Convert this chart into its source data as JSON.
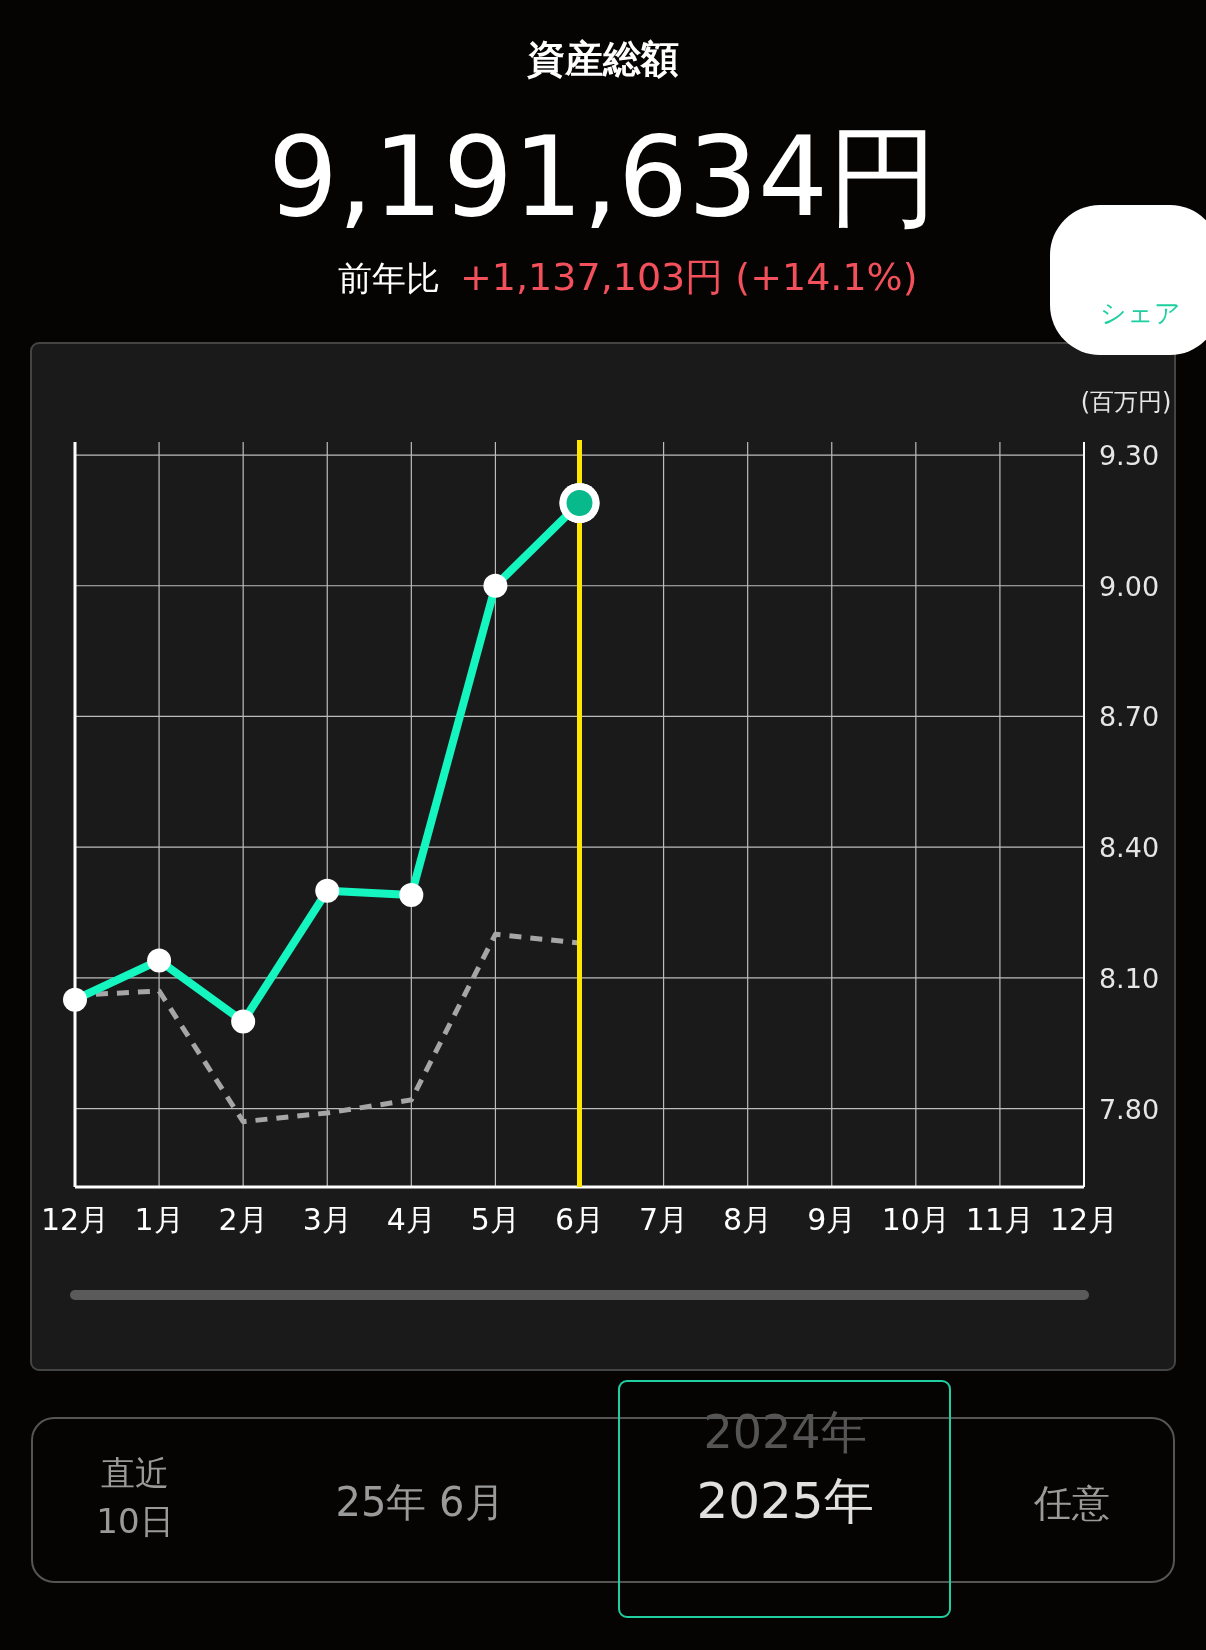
{
  "chart_data": {
    "type": "line",
    "title": "資産総額",
    "subtitle": "9,191,634円",
    "annotations": [
      "前年比",
      "+1,137,103円 (+14.1%)",
      "シェア",
      "直近10日",
      "25年 6月",
      "2024年",
      "2025年",
      "任意"
    ],
    "ylabel": "(百万円)",
    "categories": [
      "12月",
      "1月",
      "2月",
      "3月",
      "4月",
      "5月",
      "6月",
      "7月",
      "8月",
      "9月",
      "10月",
      "11月",
      "12月"
    ],
    "series": [
      {
        "color": "#14f5c0",
        "values": [
          8.05,
          8.14,
          8.0,
          8.3,
          8.29,
          9.0,
          9.19,
          null,
          null,
          null,
          null,
          null,
          null
        ],
        "marker": "circle",
        "line_style": "solid"
      },
      {
        "color": "#a6a6a6",
        "values": [
          8.06,
          8.07,
          7.77,
          7.79,
          7.82,
          8.2,
          8.18,
          null,
          null,
          null,
          null,
          null,
          null
        ],
        "marker": "none",
        "line_style": "dashed"
      }
    ],
    "ylim": [
      7.62,
      9.33
    ],
    "yticks": [
      {
        "value": 7.8,
        "label": "7.80"
      },
      {
        "value": 8.1,
        "label": "8.10"
      },
      {
        "value": 8.4,
        "label": "8.40"
      },
      {
        "value": 8.7,
        "label": "8.70"
      },
      {
        "value": 9.0,
        "label": "9.00"
      },
      {
        "value": 9.3,
        "label": "9.30"
      }
    ],
    "grid": true,
    "ref_lines": [
      {
        "axis": "x",
        "value": "6月",
        "color": "#ffe600"
      }
    ]
  }
}
